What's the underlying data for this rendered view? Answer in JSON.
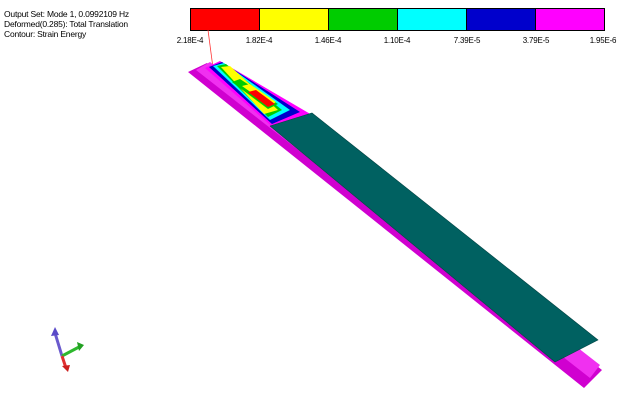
{
  "header": {
    "output_set": "Output Set: Mode 1, 0.0992109 Hz",
    "deformed": "Deformed(0.285): Total Translation",
    "contour": "Contour: Strain Energy"
  },
  "legend": {
    "colors": [
      "#ff0000",
      "#ffff00",
      "#00cc00",
      "#00ffff",
      "#0000cc",
      "#ff00ff"
    ],
    "labels": [
      "2.18E-4",
      "1.82E-4",
      "1.46E-4",
      "1.10E-4",
      "7.39E-5",
      "3.79E-5",
      "1.95E-6"
    ]
  },
  "icons": {
    "triad": "axis-triad-icon"
  }
}
